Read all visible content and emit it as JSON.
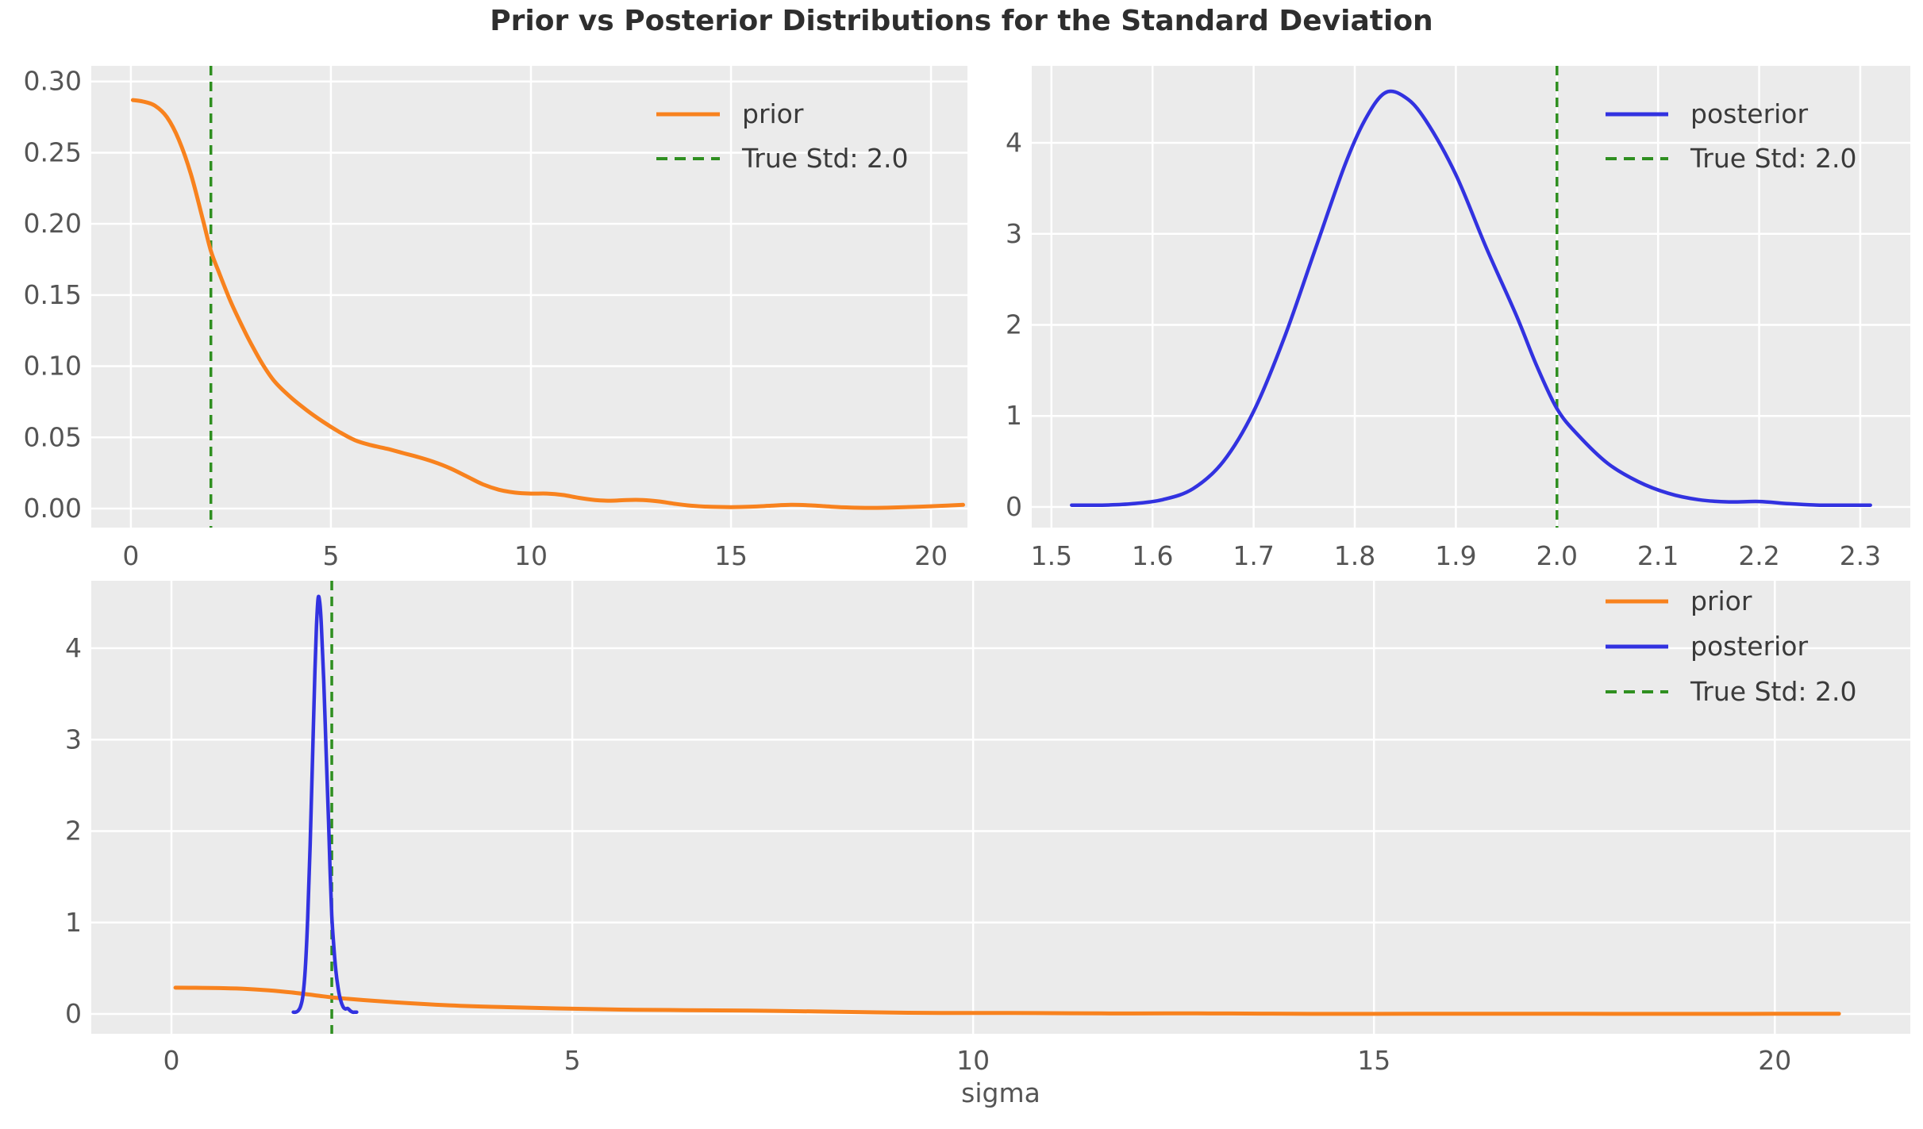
{
  "title": "Prior vs Posterior Distributions for the Standard Deviation",
  "bottom_xlabel": "sigma",
  "true_std_value": 2.0,
  "colors": {
    "prior": "#f8821e",
    "posterior": "#3232e0",
    "true_std": "#2f8f20",
    "plot_bg": "#ebebeb",
    "grid": "#ffffff",
    "tick_text": "#555555",
    "title_text": "#2e2e2e"
  },
  "series_data": {
    "prior": [
      [
        0.05,
        0.287
      ],
      [
        0.3,
        0.286
      ],
      [
        0.6,
        0.283
      ],
      [
        0.9,
        0.275
      ],
      [
        1.2,
        0.259
      ],
      [
        1.5,
        0.235
      ],
      [
        1.8,
        0.203
      ],
      [
        2.0,
        0.181
      ],
      [
        2.2,
        0.166
      ],
      [
        2.5,
        0.145
      ],
      [
        2.8,
        0.127
      ],
      [
        3.0,
        0.116
      ],
      [
        3.3,
        0.101
      ],
      [
        3.6,
        0.089
      ],
      [
        4.0,
        0.078
      ],
      [
        4.4,
        0.069
      ],
      [
        4.8,
        0.061
      ],
      [
        5.2,
        0.054
      ],
      [
        5.6,
        0.048
      ],
      [
        6.0,
        0.0445
      ],
      [
        6.4,
        0.042
      ],
      [
        6.8,
        0.039
      ],
      [
        7.2,
        0.036
      ],
      [
        7.6,
        0.0325
      ],
      [
        8.0,
        0.028
      ],
      [
        8.4,
        0.0225
      ],
      [
        8.8,
        0.017
      ],
      [
        9.2,
        0.0132
      ],
      [
        9.6,
        0.0112
      ],
      [
        10.0,
        0.0105
      ],
      [
        10.4,
        0.0105
      ],
      [
        10.8,
        0.0095
      ],
      [
        11.2,
        0.0075
      ],
      [
        11.6,
        0.006
      ],
      [
        12.0,
        0.0055
      ],
      [
        12.4,
        0.006
      ],
      [
        12.8,
        0.006
      ],
      [
        13.2,
        0.005
      ],
      [
        13.6,
        0.0033
      ],
      [
        14.0,
        0.002
      ],
      [
        14.5,
        0.0012
      ],
      [
        15.0,
        0.001
      ],
      [
        15.5,
        0.0013
      ],
      [
        16.0,
        0.002
      ],
      [
        16.5,
        0.0026
      ],
      [
        17.0,
        0.0022
      ],
      [
        17.5,
        0.0013
      ],
      [
        18.0,
        0.0007
      ],
      [
        18.5,
        0.0005
      ],
      [
        19.0,
        0.0007
      ],
      [
        19.5,
        0.0011
      ],
      [
        20.0,
        0.0016
      ],
      [
        20.4,
        0.0021
      ],
      [
        20.8,
        0.0026
      ]
    ],
    "posterior": [
      [
        1.52,
        0.02
      ],
      [
        1.55,
        0.02
      ],
      [
        1.58,
        0.035
      ],
      [
        1.61,
        0.08
      ],
      [
        1.64,
        0.2
      ],
      [
        1.67,
        0.5
      ],
      [
        1.7,
        1.05
      ],
      [
        1.73,
        1.85
      ],
      [
        1.76,
        2.8
      ],
      [
        1.79,
        3.75
      ],
      [
        1.81,
        4.25
      ],
      [
        1.83,
        4.55
      ],
      [
        1.85,
        4.5
      ],
      [
        1.87,
        4.25
      ],
      [
        1.9,
        3.65
      ],
      [
        1.93,
        2.85
      ],
      [
        1.96,
        2.1
      ],
      [
        1.98,
        1.55
      ],
      [
        2.0,
        1.08
      ],
      [
        2.02,
        0.8
      ],
      [
        2.05,
        0.48
      ],
      [
        2.08,
        0.28
      ],
      [
        2.11,
        0.15
      ],
      [
        2.14,
        0.08
      ],
      [
        2.17,
        0.055
      ],
      [
        2.2,
        0.06
      ],
      [
        2.23,
        0.035
      ],
      [
        2.26,
        0.02
      ],
      [
        2.29,
        0.02
      ],
      [
        2.31,
        0.02
      ]
    ]
  },
  "chart_data": [
    {
      "type": "line",
      "name": "prior-panel",
      "series": [
        {
          "name": "prior",
          "points": "prior",
          "color": "prior",
          "style": "solid"
        }
      ],
      "vline": {
        "x": 2.0,
        "label": "True Std: 2.0",
        "color": "true_std"
      },
      "xlim": [
        -0.99,
        20.91
      ],
      "ylim": [
        -0.0134,
        0.311
      ],
      "xticks": [
        0,
        5,
        10,
        15,
        20
      ],
      "xtick_labels": [
        "0",
        "5",
        "10",
        "15",
        "20"
      ],
      "yticks": [
        0.0,
        0.05,
        0.1,
        0.15,
        0.2,
        0.25,
        0.3
      ],
      "ytick_labels": [
        "0.00",
        "0.05",
        "0.10",
        "0.15",
        "0.20",
        "0.25",
        "0.30"
      ],
      "grid": true,
      "legend_loc": "upper right",
      "legend": [
        {
          "label": "prior",
          "color": "prior",
          "style": "solid"
        },
        {
          "label": "True Std: 2.0",
          "color": "true_std",
          "style": "dashed"
        }
      ]
    },
    {
      "type": "line",
      "name": "posterior-panel",
      "series": [
        {
          "name": "posterior",
          "points": "posterior",
          "color": "posterior",
          "style": "solid"
        }
      ],
      "vline": {
        "x": 2.0,
        "label": "True Std: 2.0",
        "color": "true_std"
      },
      "xlim": [
        1.4805,
        2.3495
      ],
      "ylim": [
        -0.227,
        4.846
      ],
      "xticks": [
        1.5,
        1.6,
        1.7,
        1.8,
        1.9,
        2.0,
        2.1,
        2.2,
        2.3
      ],
      "xtick_labels": [
        "1.5",
        "1.6",
        "1.7",
        "1.8",
        "1.9",
        "2.0",
        "2.1",
        "2.2",
        "2.3"
      ],
      "yticks": [
        0,
        1,
        2,
        3,
        4
      ],
      "ytick_labels": [
        "0",
        "1",
        "2",
        "3",
        "4"
      ],
      "grid": true,
      "legend_loc": "upper right",
      "legend": [
        {
          "label": "posterior",
          "color": "posterior",
          "style": "solid"
        },
        {
          "label": "True Std: 2.0",
          "color": "true_std",
          "style": "dashed"
        }
      ]
    },
    {
      "type": "line",
      "name": "combined-panel",
      "xlabel": "sigma",
      "series": [
        {
          "name": "prior",
          "points": "prior",
          "color": "prior",
          "style": "solid"
        },
        {
          "name": "posterior",
          "points": "posterior",
          "color": "posterior",
          "style": "solid"
        }
      ],
      "vline": {
        "x": 2.0,
        "label": "True Std: 2.0",
        "color": "true_std"
      },
      "xlim": [
        -1.0,
        21.69
      ],
      "ylim": [
        -0.217,
        4.738
      ],
      "xticks": [
        0,
        5,
        10,
        15,
        20
      ],
      "xtick_labels": [
        "0",
        "5",
        "10",
        "15",
        "20"
      ],
      "yticks": [
        0,
        1,
        2,
        3,
        4
      ],
      "ytick_labels": [
        "0",
        "1",
        "2",
        "3",
        "4"
      ],
      "grid": true,
      "legend_loc": "upper right",
      "legend": [
        {
          "label": "prior",
          "color": "prior",
          "style": "solid"
        },
        {
          "label": "posterior",
          "color": "posterior",
          "style": "solid"
        },
        {
          "label": "True Std: 2.0",
          "color": "true_std",
          "style": "dashed"
        }
      ]
    }
  ]
}
